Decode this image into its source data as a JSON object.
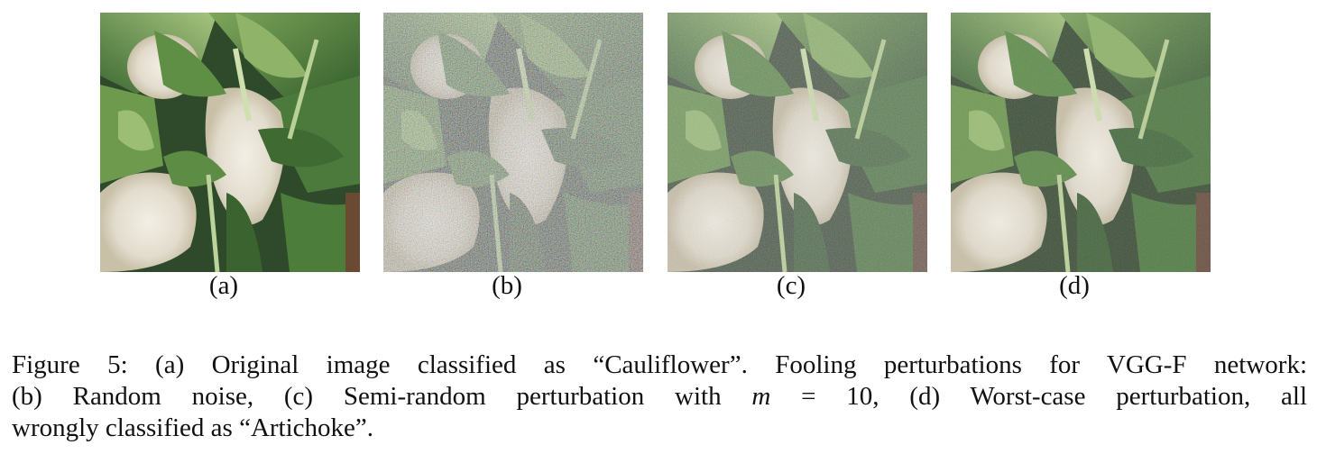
{
  "figure": {
    "panels": [
      {
        "label": "(a)",
        "image": "cauliflower-original"
      },
      {
        "label": "(b)",
        "image": "cauliflower-random-noise"
      },
      {
        "label": "(c)",
        "image": "cauliflower-semi-random-perturbation"
      },
      {
        "label": "(d)",
        "image": "cauliflower-worst-case-perturbation"
      }
    ],
    "caption": {
      "line1": "Figure 5:  (a) Original image classified as “Cauliflower”. Fooling perturbations for VGG-F network:",
      "line2_pre": "(b) Random noise, (c) Semi-random perturbation with ",
      "line2_var": "m",
      "line2_eq": " = 10, (d) Worst-case perturbation, all",
      "line3": "wrongly classified as “Artichoke”."
    }
  }
}
